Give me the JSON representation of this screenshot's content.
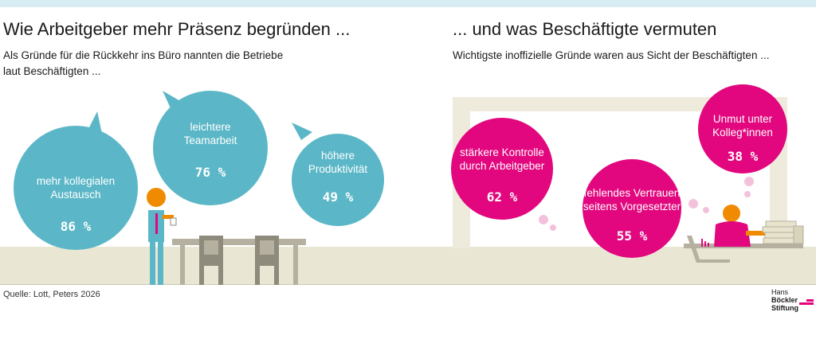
{
  "left": {
    "title": "Wie Arbeitgeber mehr Präsenz begründen ...",
    "subtitle_line1": "Als Gründe für die Rückkehr ins Büro nannten die Betriebe",
    "subtitle_line2": "laut Beschäftigten ..."
  },
  "right": {
    "title": "... und was Beschäftigte vermuten",
    "subtitle": "Wichtigste inoffizielle Gründe waren aus Sicht der Beschäftigten ..."
  },
  "chart_data": [
    {
      "type": "bubble",
      "categories": [
        "mehr kollegialen Austausch",
        "leichtere Teamarbeit",
        "höhere Produktivität"
      ],
      "values": [
        86,
        76,
        49
      ],
      "unit": "%",
      "value_labels": [
        "86 %",
        "76 %",
        "49 %"
      ],
      "color": "#5bb7c7"
    },
    {
      "type": "bubble",
      "categories": [
        "stärkere Kontrolle durch Arbeitgeber",
        "fehlendes Vertrauen seitens Vorgesetzter",
        "Unmut unter Kolleg*innen"
      ],
      "values": [
        62,
        55,
        38
      ],
      "unit": "%",
      "value_labels": [
        "62 %",
        "55 %",
        "38 %"
      ],
      "color": "#e2077e"
    }
  ],
  "bubbles": {
    "b1": {
      "line1": "mehr kollegialen",
      "line2": "Austausch",
      "value": "86 %"
    },
    "b2": {
      "line1": "leichtere",
      "line2": "Teamarbeit",
      "value": "76 %"
    },
    "b3": {
      "line1": "höhere",
      "line2": "Produktivität",
      "value": "49 %"
    },
    "b4": {
      "line1": "stärkere Kontrolle",
      "line2": "durch Arbeitgeber",
      "value": "62 %"
    },
    "b5": {
      "line1": "fehlendes Vertrauen",
      "line2": "seitens Vorgesetzter",
      "value": "55 %"
    },
    "b6": {
      "line1": "Unmut unter",
      "line2": "Kolleg*innen",
      "value": "38 %"
    }
  },
  "source": "Quelle: Lott, Peters 2026",
  "logo": {
    "line1a": "Hans ",
    "line1b": "Böckler",
    "line2": "Stiftung"
  },
  "colors": {
    "teal": "#5bb7c7",
    "magenta": "#e2077e",
    "orange": "#f08a00",
    "ground": "#e9e6d3",
    "frame": "#eeebdc"
  }
}
